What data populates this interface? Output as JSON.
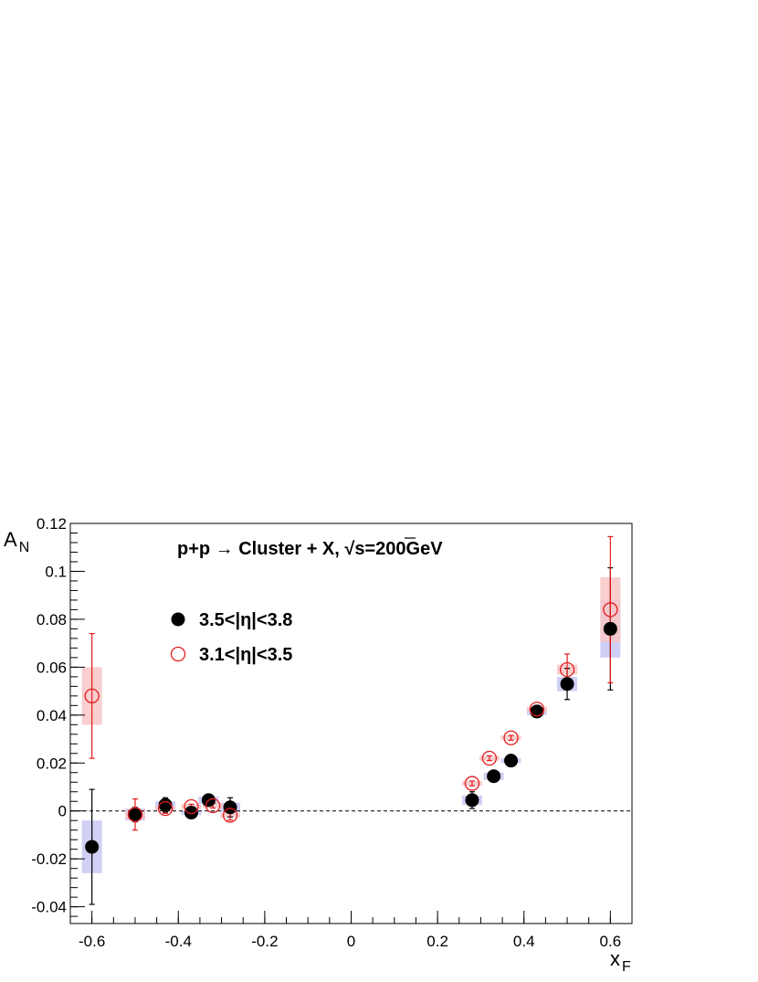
{
  "chart_data": {
    "type": "scatter",
    "title": "p+p → Cluster + X,  √s=200GeV",
    "xlabel": "x",
    "xlabel_sub": "F",
    "ylabel": "A",
    "ylabel_sub": "N",
    "xlim": [
      -0.65,
      0.65
    ],
    "ylim": [
      -0.047,
      0.12
    ],
    "x_ticks": [
      -0.6,
      -0.4,
      -0.2,
      0,
      0.2,
      0.4,
      0.6
    ],
    "x_tick_labels": [
      "-0.6",
      "-0.4",
      "-0.2",
      "0",
      "0.2",
      "0.4",
      "0.6"
    ],
    "y_ticks": [
      -0.04,
      -0.02,
      0,
      0.02,
      0.04,
      0.06,
      0.08,
      0.1,
      0.12
    ],
    "y_tick_labels": [
      "-0.04",
      "-0.02",
      "0",
      "0.02",
      "0.04",
      "0.06",
      "0.08",
      "0.1",
      "0.12"
    ],
    "reference_line": {
      "y": 0,
      "style": "dashed"
    },
    "grid": false,
    "legend_position": "upper-left",
    "series": [
      {
        "name": "3.5<|η|<3.8",
        "marker": "filled-circle",
        "color": "#000000",
        "sys_color": "#c8c8f5",
        "points": [
          {
            "x": -0.6,
            "y": -0.015,
            "stat": 0.024,
            "sys": 0.011
          },
          {
            "x": -0.5,
            "y": -0.0015,
            "stat": 0.003,
            "sys": 0.0025
          },
          {
            "x": -0.43,
            "y": 0.0025,
            "stat": 0.003,
            "sys": 0.0015
          },
          {
            "x": -0.37,
            "y": -0.0007,
            "stat": 0.002,
            "sys": 0.001
          },
          {
            "x": -0.33,
            "y": 0.0045,
            "stat": 0.002,
            "sys": 0.0015
          },
          {
            "x": -0.28,
            "y": 0.0015,
            "stat": 0.004,
            "sys": 0.002
          },
          {
            "x": 0.28,
            "y": 0.0045,
            "stat": 0.0035,
            "sys": 0.002
          },
          {
            "x": 0.33,
            "y": 0.0145,
            "stat": 0.001,
            "sys": 0.0015
          },
          {
            "x": 0.37,
            "y": 0.021,
            "stat": 0.001,
            "sys": 0.001
          },
          {
            "x": 0.43,
            "y": 0.0415,
            "stat": 0.0025,
            "sys": 0.0015
          },
          {
            "x": 0.5,
            "y": 0.053,
            "stat": 0.0065,
            "sys": 0.003
          },
          {
            "x": 0.6,
            "y": 0.076,
            "stat": 0.0255,
            "sys": 0.012
          }
        ]
      },
      {
        "name": "3.1<|η|<3.5",
        "marker": "open-circle",
        "color": "#e41a1c",
        "sys_color": "#f8c6c6",
        "points": [
          {
            "x": -0.6,
            "y": 0.048,
            "stat": 0.026,
            "sys": 0.012
          },
          {
            "x": -0.5,
            "y": -0.0015,
            "stat": 0.0065,
            "sys": 0.002
          },
          {
            "x": -0.43,
            "y": 0.001,
            "stat": 0.002,
            "sys": 0.001
          },
          {
            "x": -0.37,
            "y": 0.0018,
            "stat": 0.001,
            "sys": 0.001
          },
          {
            "x": -0.32,
            "y": 0.0022,
            "stat": 0.001,
            "sys": 0.001
          },
          {
            "x": -0.28,
            "y": -0.0018,
            "stat": 0.002,
            "sys": 0.001
          },
          {
            "x": 0.28,
            "y": 0.0115,
            "stat": 0.001,
            "sys": 0.001
          },
          {
            "x": 0.32,
            "y": 0.022,
            "stat": 0.001,
            "sys": 0.001
          },
          {
            "x": 0.37,
            "y": 0.0305,
            "stat": 0.001,
            "sys": 0.001
          },
          {
            "x": 0.43,
            "y": 0.0425,
            "stat": 0.0015,
            "sys": 0.001
          },
          {
            "x": 0.5,
            "y": 0.059,
            "stat": 0.0065,
            "sys": 0.002
          },
          {
            "x": 0.6,
            "y": 0.084,
            "stat": 0.0305,
            "sys": 0.0135
          }
        ]
      }
    ]
  }
}
